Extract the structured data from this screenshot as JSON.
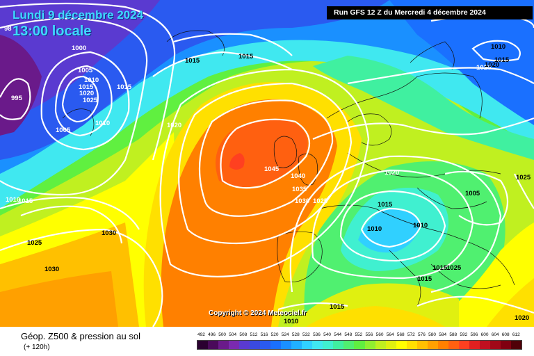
{
  "map": {
    "date_title": "Lundi 9 décembre 2024",
    "time_title": "13:00 locale",
    "run_info": "Run GFS 12 Z du Mercredi 4 décembre 2024",
    "copyright": "Copyright © 2024 Meteociel.fr",
    "footer_title": "Géop. Z500 & pression au sol",
    "footer_sub": "(+ 120h)",
    "pressure_labels": [
      "995",
      "1000",
      "1005",
      "1010",
      "1015",
      "1020",
      "1025",
      "1005",
      "1010",
      "1015",
      "1020",
      "1015",
      "1015",
      "1020",
      "1045",
      "1040",
      "1035",
      "1030",
      "1025",
      "1015",
      "1010",
      "1010",
      "1005",
      "1020",
      "1025",
      "1030",
      "1025",
      "1030",
      "1015",
      "1015",
      "1015",
      "1010",
      "1010",
      "1015",
      "1020",
      "1010",
      "1015",
      "1025",
      "1020",
      "98"
    ],
    "legend": {
      "values": [
        "492",
        "496",
        "500",
        "504",
        "508",
        "512",
        "516",
        "520",
        "524",
        "528",
        "532",
        "536",
        "540",
        "544",
        "548",
        "552",
        "556",
        "560",
        "564",
        "568",
        "572",
        "576",
        "580",
        "584",
        "588",
        "592",
        "596",
        "600",
        "604",
        "608",
        "612"
      ],
      "colors": [
        "#2a0030",
        "#4a0a5a",
        "#6a1a8a",
        "#7a2ab0",
        "#5a3ad0",
        "#3a4ae0",
        "#2a5af0",
        "#1a70ff",
        "#1a90ff",
        "#20b0ff",
        "#30d0ff",
        "#40e8f0",
        "#40f0d0",
        "#40f0a0",
        "#50f070",
        "#60f040",
        "#90f030",
        "#c0f020",
        "#e0f010",
        "#ffff00",
        "#ffe000",
        "#ffc000",
        "#ffa000",
        "#ff8000",
        "#ff6010",
        "#ff4020",
        "#e02020",
        "#c01020",
        "#a00818",
        "#800010",
        "#500008"
      ]
    }
  }
}
